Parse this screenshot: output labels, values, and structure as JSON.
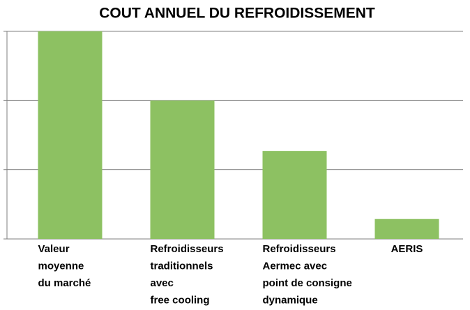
{
  "chart_data": {
    "type": "bar",
    "title": "COUT ANNUEL DU REFROIDISSEMENT",
    "categories": [
      [
        "Valeur",
        "moyenne",
        "du marché"
      ],
      [
        "Refroidisseurs",
        "traditionnels",
        "avec",
        "free cooling"
      ],
      [
        "Refroidisseurs",
        "Aermec avec",
        "point de consigne",
        "dynamique"
      ],
      [
        "AERIS"
      ]
    ],
    "values": [
      3,
      2,
      1.27,
      0.29
    ],
    "color": "#8dc162",
    "ylim": [
      0,
      3
    ],
    "yticks": [
      0,
      1,
      2,
      3
    ],
    "grid": true
  }
}
